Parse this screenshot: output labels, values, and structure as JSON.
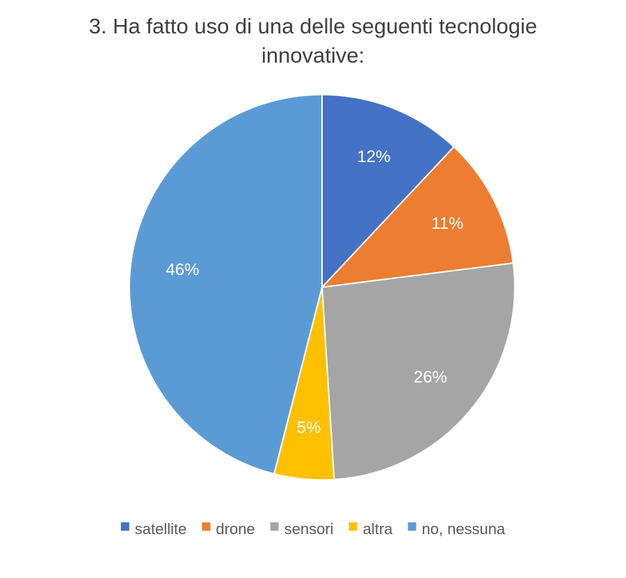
{
  "chart_data": {
    "type": "pie",
    "title_lines": [
      "3. Ha fatto uso di una delle seguenti tecnologie",
      "innovative:"
    ],
    "slices": [
      {
        "label": "satellite",
        "value": 12,
        "value_label": "12%",
        "color": "#4472C4"
      },
      {
        "label": "drone",
        "value": 11,
        "value_label": "11%",
        "color": "#ED7D31"
      },
      {
        "label": "sensori",
        "value": 26,
        "value_label": "26%",
        "color": "#A5A5A5"
      },
      {
        "label": "altra",
        "value": 5,
        "value_label": "5%",
        "color": "#FFC000"
      },
      {
        "label": "no, nessuna",
        "value": 46,
        "value_label": "46%",
        "color": "#5B9BD5"
      }
    ],
    "legend_position": "bottom",
    "start": "12 o'clock, clockwise"
  }
}
